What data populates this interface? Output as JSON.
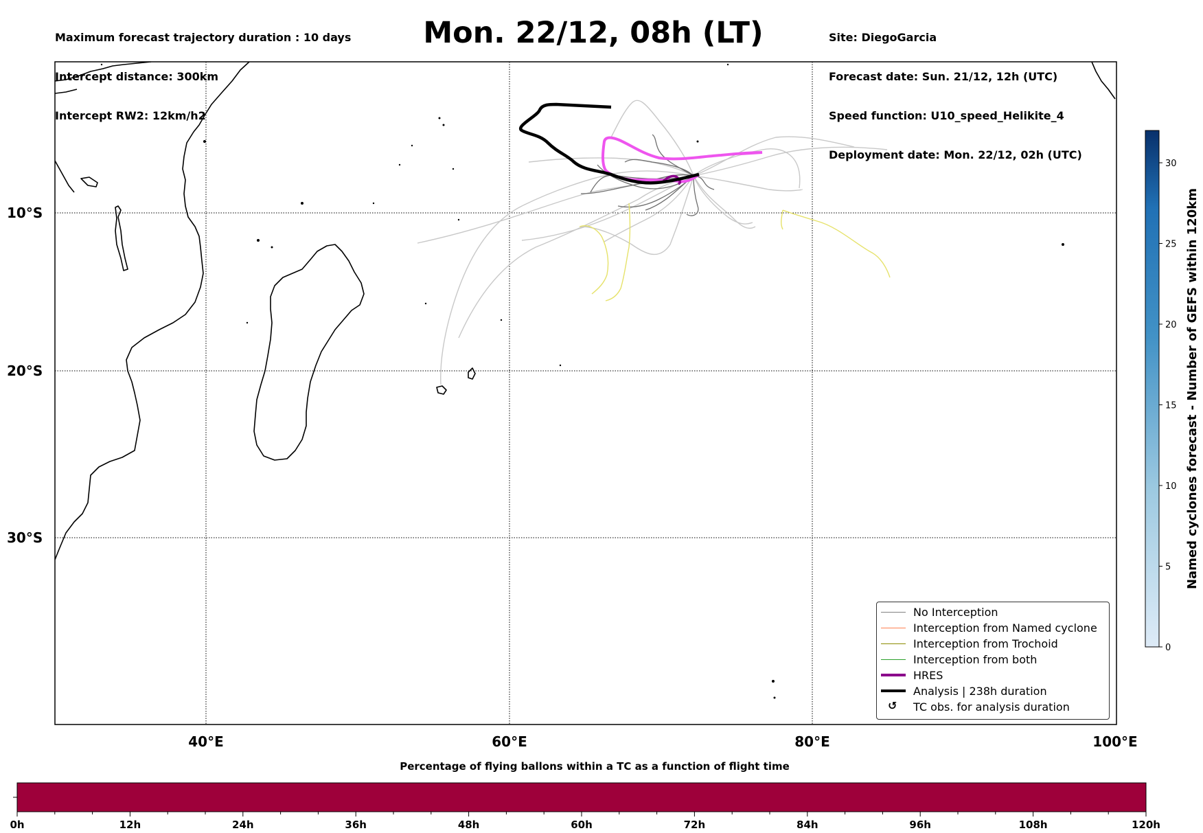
{
  "header": {
    "left_lines": [
      "Maximum forecast trajectory duration : 10 days",
      "Intercept distance: 300km",
      "Intercept RW2: 12km/h2"
    ],
    "title": "Mon. 22/12, 08h (LT)",
    "right_lines": [
      "Site: DiegoGarcia",
      "Forecast date: Sun. 21/12, 12h (UTC)",
      "Speed function: U10_speed_Helikite_4",
      "Deployment date: Mon. 22/12, 02h (UTC)"
    ]
  },
  "map": {
    "lon_ticks": [
      "40°E",
      "60°E",
      "80°E",
      "100°E"
    ],
    "lat_ticks": [
      "10°S",
      "20°S",
      "30°S"
    ],
    "extent": {
      "lon": [
        30,
        100
      ],
      "lat": [
        0,
        -40
      ]
    }
  },
  "legend": {
    "items": [
      {
        "label": "No Interception",
        "color": "#808080",
        "style": "thin"
      },
      {
        "label": "Interception from Named cyclone",
        "color": "#ff7f50",
        "style": "thin"
      },
      {
        "label": "Interception from Trochoid",
        "color": "#8b8b00",
        "style": "thin"
      },
      {
        "label": "Interception from both",
        "color": "#2ca02c",
        "style": "thin"
      },
      {
        "label": "HRES",
        "color": "#8b008b",
        "style": "thick"
      },
      {
        "label": "Analysis | 238h duration",
        "color": "#000000",
        "style": "thick"
      },
      {
        "label": "TC obs. for analysis duration",
        "color": "#000000",
        "style": "glyph",
        "glyph": "↺"
      }
    ]
  },
  "colorbar": {
    "label": "Named cyclones forecast - Number of GEFS within 120km",
    "ticks": [
      "0",
      "5",
      "10",
      "15",
      "20",
      "25",
      "30"
    ],
    "color_low": "#deebf7",
    "color_high": "#08306b"
  },
  "timebar": {
    "title": "Percentage of flying ballons within a TC as a function of flight time",
    "ticks": [
      "0h",
      "12h",
      "24h",
      "36h",
      "48h",
      "60h",
      "72h",
      "84h",
      "96h",
      "108h",
      "120h"
    ],
    "fill_color": "#9e003a"
  },
  "colors": {
    "hres": "#ee55ee",
    "hres_dark": "#8b008b",
    "analysis": "#000000",
    "ensemble_light": "#c8c8c8",
    "ensemble_dark": "#6e6e6e",
    "ensemble_yellow": "#e6e26a"
  }
}
